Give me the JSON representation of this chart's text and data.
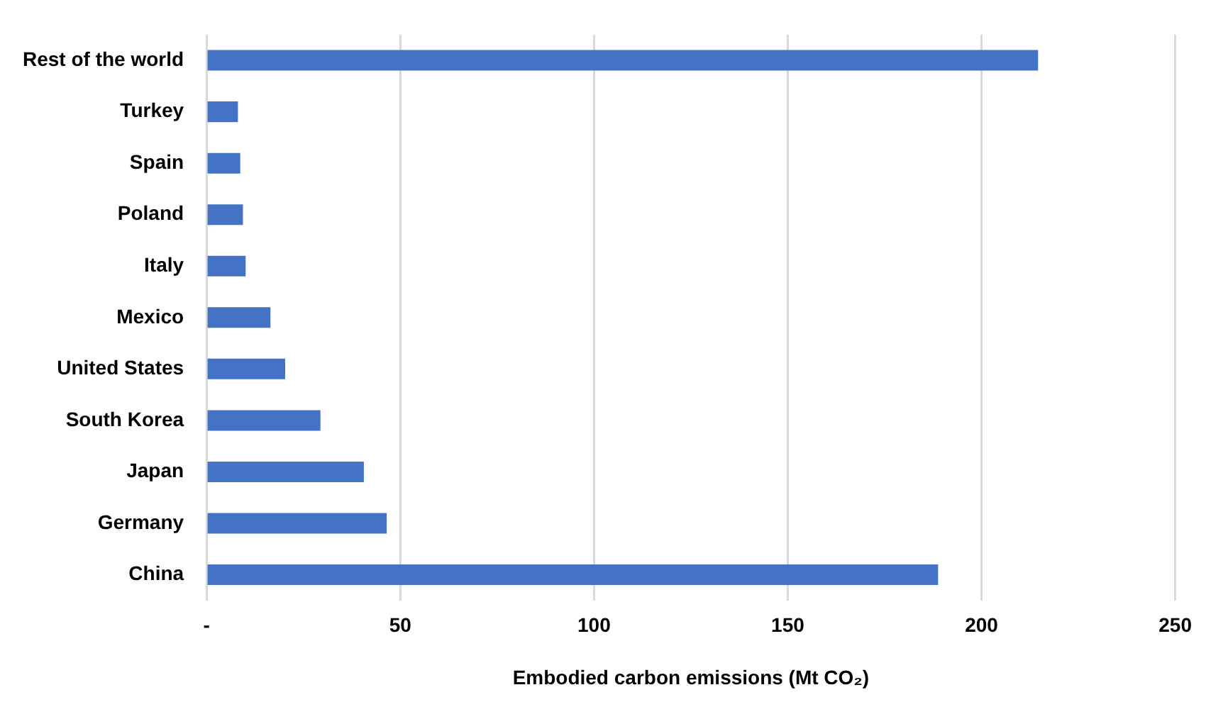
{
  "chart_data": {
    "type": "bar",
    "orientation": "horizontal",
    "categories": [
      "Rest of the world",
      "Turkey",
      "Spain",
      "Poland",
      "Italy",
      "Mexico",
      "United States",
      "South Korea",
      "Japan",
      "Germany",
      "China"
    ],
    "values": [
      214.6,
      8.1,
      8.7,
      9.4,
      10.1,
      16.5,
      20.3,
      29.4,
      40.6,
      46.5,
      188.8
    ],
    "color": "#4472c4",
    "xlabel": "Embodied carbon emissions (Mt CO₂)",
    "xlim": [
      0,
      250
    ],
    "xticks": [
      {
        "value": 0,
        "label": "-"
      },
      50,
      100,
      150,
      200,
      250
    ],
    "grid": "x",
    "legend": false
  }
}
